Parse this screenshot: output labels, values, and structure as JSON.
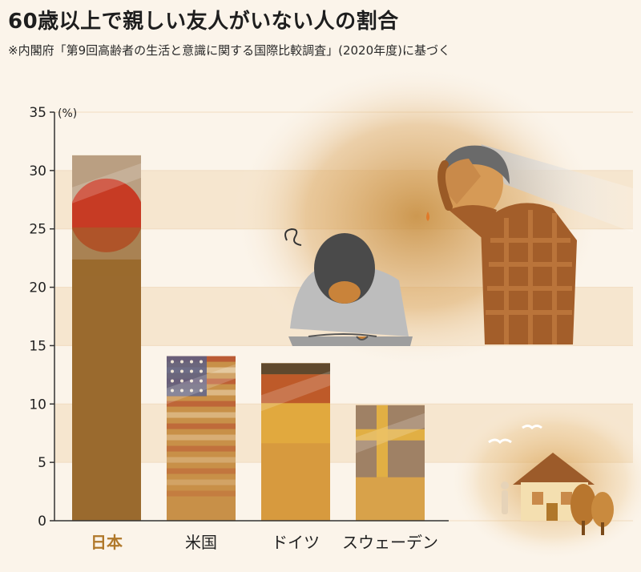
{
  "title": "60歳以上で親しい友人がいない人の割合",
  "subtitle": "※内閣府「第9回高齢者の生活と意識に関する国際比較調査」(2020年度)に基づく",
  "chart_data": {
    "type": "bar",
    "categories": [
      "日本",
      "米国",
      "ドイツ",
      "スウェーデン"
    ],
    "values": [
      31.3,
      14.1,
      13.5,
      9.9
    ],
    "highlight_category": "日本",
    "ylabel": "(%)",
    "ylim": [
      0,
      35
    ],
    "yticks": [
      0,
      5,
      10,
      15,
      20,
      25,
      30,
      35
    ],
    "grid": true,
    "bar_colors": [
      "#9a6a2e",
      "#c89048",
      "#d79a3e",
      "#d8a24a"
    ],
    "flags": [
      "japan-flag",
      "usa-flag",
      "germany-flag",
      "sweden-flag"
    ]
  },
  "illustration": {
    "items": [
      "bowing-man-icon",
      "distressed-man-icon",
      "house-icon",
      "birds-icon",
      "trees-icon"
    ]
  }
}
